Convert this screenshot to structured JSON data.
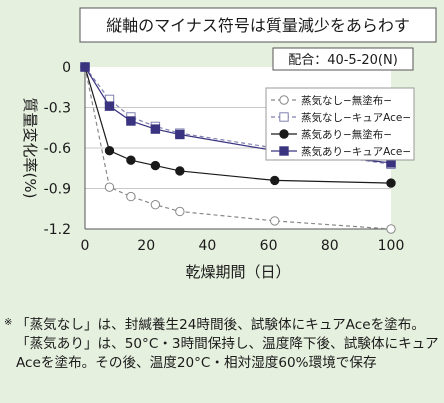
{
  "chart_data": {
    "type": "line",
    "annotation": "縦軸のマイナス符号は質量減少をあらわす",
    "condition_label": "配合：40-5-20(N)",
    "xlabel": "乾燥期間（日）",
    "ylabel": "質量変化率(%)",
    "xlim": [
      0,
      100
    ],
    "ylim": [
      -1.2,
      0
    ],
    "xticks": [
      0,
      20,
      40,
      60,
      80,
      100
    ],
    "yticks": [
      0,
      -0.3,
      -0.6,
      -0.9,
      -1.2
    ],
    "grid": "horizontal",
    "legend_position": "right",
    "x": [
      0,
      8,
      15,
      23,
      31,
      62,
      100
    ],
    "series": [
      {
        "name": "蒸気なし−無塗布−",
        "values": [
          0,
          -0.89,
          -0.96,
          -1.02,
          -1.07,
          -1.14,
          -1.2
        ],
        "color": "#888888",
        "marker": "circle-open",
        "line": "dashed"
      },
      {
        "name": "蒸気なし−キュアAce−",
        "values": [
          0,
          -0.24,
          -0.37,
          -0.44,
          -0.49,
          -0.6,
          -0.72
        ],
        "color": "#8080b0",
        "marker": "square-open",
        "line": "dashed"
      },
      {
        "name": "蒸気あり−無塗布−",
        "values": [
          0,
          -0.62,
          -0.69,
          -0.73,
          -0.77,
          -0.84,
          -0.86
        ],
        "color": "#1a1a1a",
        "marker": "circle-filled",
        "line": "solid"
      },
      {
        "name": "蒸気あり−キュアAce−",
        "values": [
          0,
          -0.29,
          -0.4,
          -0.46,
          -0.5,
          -0.62,
          -0.71
        ],
        "color": "#3a3480",
        "marker": "square-filled",
        "line": "solid"
      }
    ]
  },
  "note": {
    "mark": "※",
    "text": "「蒸気なし」は、封緘養生24時間後、試験体にキュアAceを塗布。「蒸気あり」は、50°C・3時間保持し、温度降下後、試験体にキュアAceを塗布。その後、温度20°C・相対湿度60%環境で保存"
  }
}
